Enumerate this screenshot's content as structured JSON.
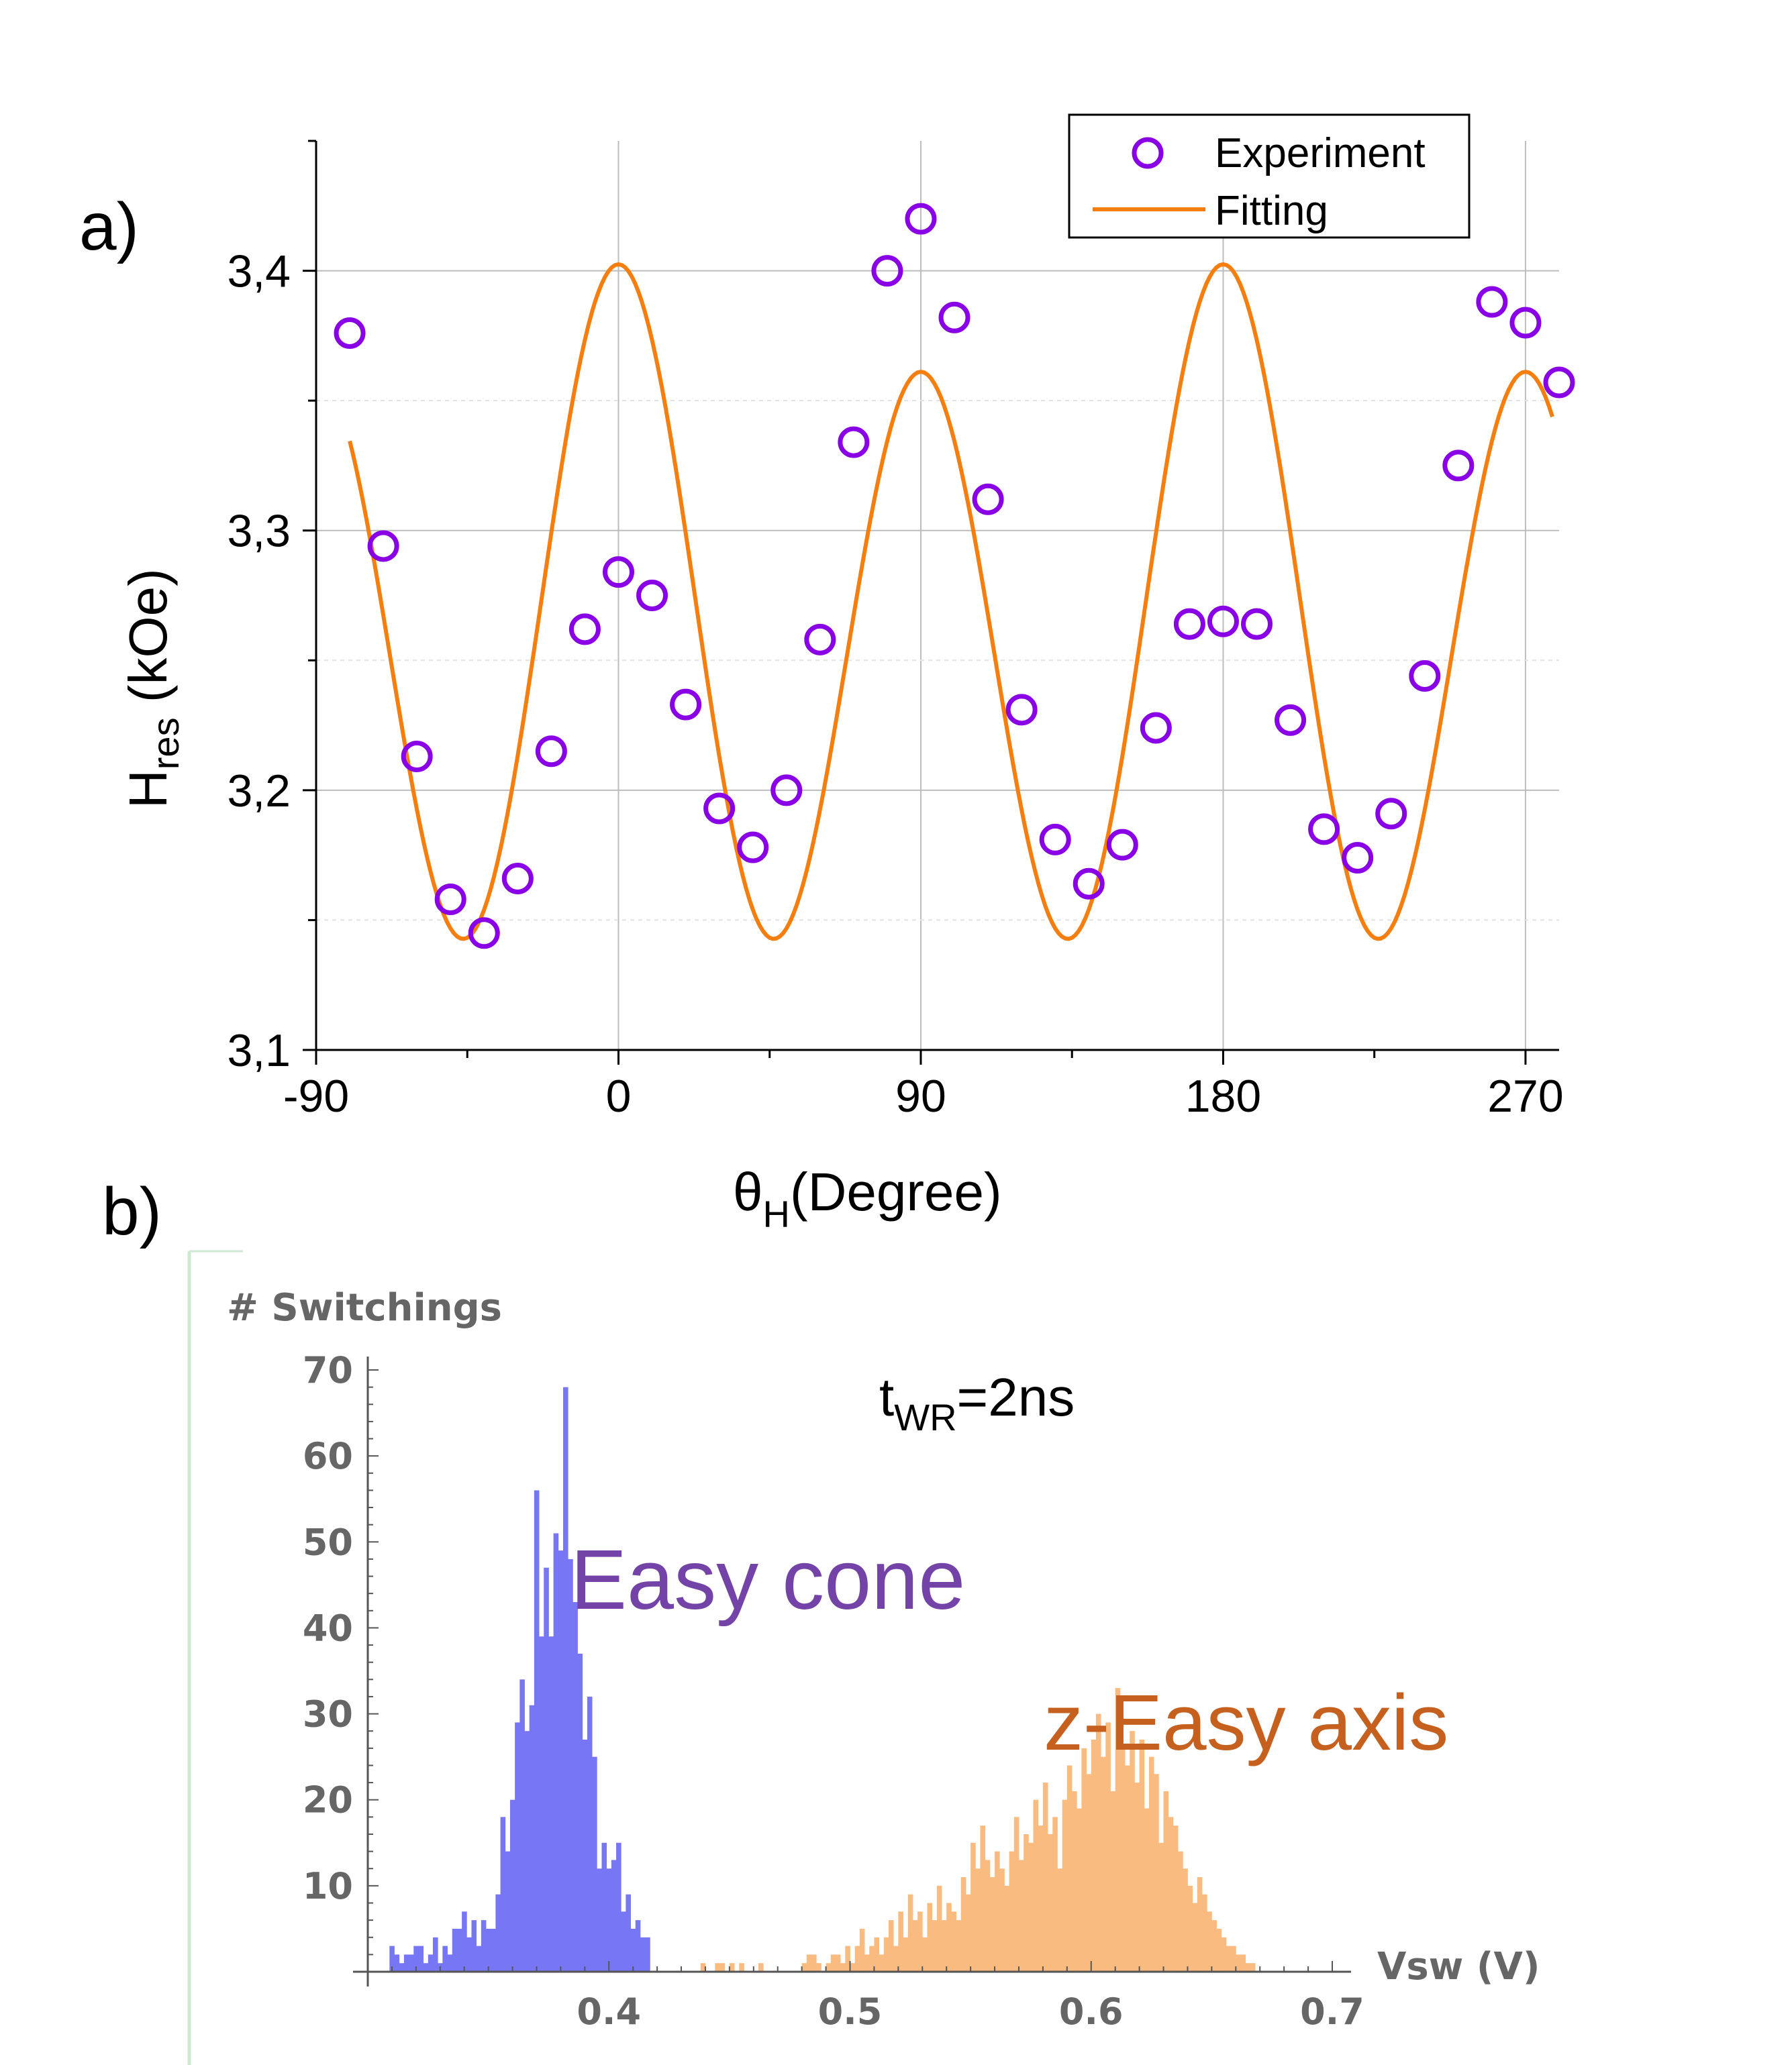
{
  "panel_a": {
    "label": "a)",
    "legend": {
      "experiment": "Experiment",
      "fitting": "Fitting"
    }
  },
  "panel_b": {
    "label": "b)",
    "condition_main": "t",
    "condition_sub": "WR",
    "condition_rest": "=2ns",
    "annotation_cone": "Easy cone",
    "annotation_axis": "z-Easy axis"
  },
  "colors": {
    "experiment_marker": "#8a00e6",
    "fit_line": "#f57e0f",
    "hist_cone": "#7777f5",
    "hist_axis": "#f9bb7f",
    "text_cone": "#7443a7",
    "text_axis": "#c5601e",
    "frame_b": "#cfe8d4",
    "axis_b_text": "#666666"
  },
  "chart_data": [
    {
      "type": "scatter",
      "title": "",
      "xlabel_main": "θ",
      "xlabel_sub": "H",
      "xlabel_rest": "(Degree)",
      "ylabel_main": "H",
      "ylabel_sub": "res",
      "ylabel_rest": " (kOe)",
      "xlim": [
        -90,
        280
      ],
      "ylim": [
        3.1,
        3.45
      ],
      "xticks": [
        -90,
        0,
        90,
        180,
        270
      ],
      "yticks": [
        3.1,
        3.2,
        3.3,
        3.4
      ],
      "ytick_labels": [
        "3,1",
        "3,2",
        "3,3",
        "3,4"
      ],
      "grid": true,
      "legend_position": "top-right",
      "series": [
        {
          "name": "Experiment",
          "kind": "markers",
          "x": [
            -80,
            -70,
            -60,
            -50,
            -40,
            -30,
            -20,
            -10,
            0,
            10,
            20,
            30,
            40,
            50,
            60,
            70,
            80,
            90,
            100,
            110,
            120,
            130,
            140,
            150,
            160,
            170,
            180,
            190,
            200,
            210,
            220,
            230,
            240,
            250,
            260,
            270,
            280
          ],
          "y": [
            3.376,
            3.294,
            3.213,
            3.158,
            3.145,
            3.166,
            3.215,
            3.262,
            3.284,
            3.275,
            3.233,
            3.193,
            3.178,
            3.2,
            3.258,
            3.334,
            3.4,
            3.42,
            3.382,
            3.312,
            3.231,
            3.181,
            3.164,
            3.179,
            3.224,
            3.264,
            3.265,
            3.264,
            3.227,
            3.185,
            3.174,
            3.191,
            3.244,
            3.325,
            3.388,
            3.38,
            3.357
          ]
        },
        {
          "name": "Fitting",
          "kind": "line",
          "model": "y = 3.2625 + 0.0207*cos(2x) + 0.1193*cos(4x)",
          "x_range": [
            -80,
            278
          ]
        }
      ]
    },
    {
      "type": "bar",
      "title": "",
      "ylabel": "# Switchings",
      "xlabel": "Vsw (V)",
      "xlim": [
        0.3,
        0.7
      ],
      "ylim": [
        0,
        70
      ],
      "xticks": [
        0.4,
        0.5,
        0.6,
        0.7
      ],
      "yticks": [
        10,
        20,
        30,
        40,
        50,
        60,
        70
      ],
      "series": [
        {
          "name": "Easy cone",
          "bin_width": 0.002,
          "x_start": 0.309,
          "values": [
            3,
            2,
            1,
            2,
            2,
            3,
            3,
            1,
            2,
            4,
            1,
            3,
            2,
            5,
            5,
            7,
            4,
            6,
            3,
            6,
            5,
            5,
            9,
            18,
            14,
            20,
            29,
            34,
            28,
            31,
            56,
            39,
            47,
            39,
            51,
            49,
            68,
            48,
            43,
            37,
            27,
            32,
            25,
            12,
            15,
            12,
            13,
            15,
            7,
            9,
            5,
            6,
            4,
            4
          ]
        },
        {
          "name": "z-Easy axis",
          "bin_width": 0.002,
          "x_start": 0.438,
          "values": [
            1,
            0,
            0,
            1,
            1,
            0,
            1,
            0,
            1,
            0,
            0,
            0,
            1,
            0,
            0,
            0,
            0,
            0,
            0,
            0,
            0,
            1,
            2,
            2,
            1,
            0,
            1,
            2,
            2,
            1,
            3,
            1,
            3,
            5,
            2,
            3,
            4,
            2,
            4,
            6,
            3,
            7,
            4,
            9,
            6,
            7,
            4,
            8,
            6,
            10,
            6,
            8,
            7,
            6,
            11,
            9,
            15,
            12,
            17,
            13,
            11,
            14,
            12,
            10,
            14,
            18,
            13,
            16,
            15,
            20,
            17,
            22,
            16,
            18,
            12,
            20,
            24,
            21,
            19,
            26,
            23,
            27,
            30,
            25,
            29,
            21,
            33,
            26,
            24,
            28,
            22,
            27,
            19,
            25,
            23,
            15,
            21,
            18,
            17,
            14,
            12,
            10,
            8,
            11,
            9,
            7,
            6,
            5,
            4,
            3,
            3,
            2,
            2,
            1,
            1
          ]
        }
      ]
    }
  ]
}
